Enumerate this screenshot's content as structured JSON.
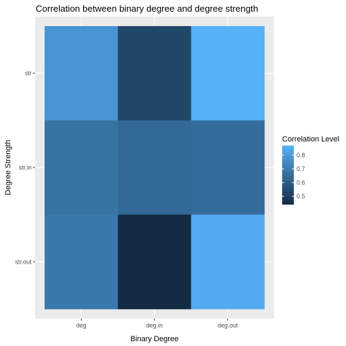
{
  "chart_data": {
    "type": "heatmap",
    "title": "Correlation between binary degree and degree strength",
    "xlabel": "Binary Degree",
    "ylabel": "Degree Strength",
    "x_categories": [
      "deg",
      "deg.in",
      "deg.out"
    ],
    "y_categories": [
      "str",
      "str.in",
      "str.out"
    ],
    "values": [
      [
        0.78,
        0.53,
        0.87
      ],
      [
        0.67,
        0.64,
        0.65
      ],
      [
        0.69,
        0.44,
        0.85
      ]
    ],
    "legend": {
      "title": "Correlation Level",
      "breaks": [
        0.5,
        0.6,
        0.7,
        0.8
      ],
      "range": [
        0.44,
        0.87
      ],
      "low_color": "#132B43",
      "high_color": "#56B1F7"
    },
    "panel_background": "#EBEBEB",
    "gridline_color": "#FFFFFF"
  }
}
